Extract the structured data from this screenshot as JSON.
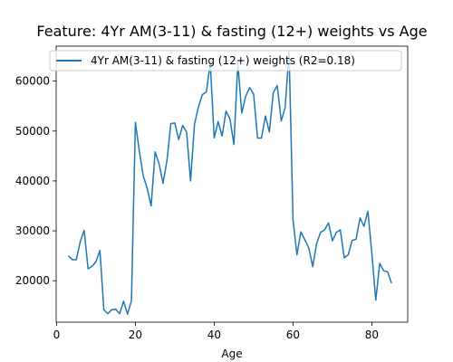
{
  "chart_data": {
    "type": "line",
    "title": "Feature: 4Yr AM(3-11) & fasting (12+) weights vs Age",
    "xlabel": "Age",
    "ylabel": "",
    "xlim": [
      -0.1,
      89.1
    ],
    "ylim": [
      11700,
      67000
    ],
    "xticks": [
      0,
      20,
      40,
      60,
      80
    ],
    "yticks": [
      20000,
      30000,
      40000,
      50000,
      60000
    ],
    "grid": false,
    "legend_position": "top",
    "series": [
      {
        "name": "4Yr AM(3-11) & fasting (12+) weights (R2=0.18)",
        "color": "#1f77b4",
        "x": [
          3,
          4,
          5,
          6,
          7,
          8,
          9,
          10,
          11,
          12,
          13,
          14,
          15,
          16,
          17,
          18,
          19,
          20,
          21,
          22,
          23,
          24,
          25,
          26,
          27,
          28,
          29,
          30,
          31,
          32,
          33,
          34,
          35,
          36,
          37,
          38,
          39,
          40,
          41,
          42,
          43,
          44,
          45,
          46,
          47,
          48,
          49,
          50,
          51,
          52,
          53,
          54,
          55,
          56,
          57,
          58,
          59,
          60,
          61,
          62,
          63,
          64,
          65,
          66,
          67,
          68,
          69,
          70,
          71,
          72,
          73,
          74,
          75,
          76,
          77,
          78,
          79,
          80,
          81,
          82,
          83,
          84,
          85
        ],
        "y": [
          25000,
          24200,
          24200,
          27800,
          30100,
          22400,
          22900,
          23800,
          26100,
          14200,
          13400,
          14200,
          14300,
          13400,
          15900,
          13300,
          16000,
          51700,
          46000,
          41000,
          38500,
          35000,
          45800,
          43500,
          39500,
          44000,
          51500,
          51600,
          48300,
          51100,
          49800,
          40000,
          51400,
          54800,
          57300,
          57800,
          63600,
          48600,
          51900,
          49000,
          54000,
          52400,
          47300,
          63600,
          53600,
          57000,
          58700,
          57400,
          48600,
          48600,
          53000,
          49800,
          57700,
          59100,
          52000,
          54700,
          65900,
          32200,
          25200,
          29800,
          28200,
          26600,
          22800,
          27500,
          29700,
          30200,
          31600,
          28000,
          29700,
          30200,
          24600,
          25200,
          28100,
          28300,
          32600,
          30900,
          33900,
          25500,
          16100,
          23500,
          22000,
          21800,
          19500
        ]
      }
    ]
  }
}
